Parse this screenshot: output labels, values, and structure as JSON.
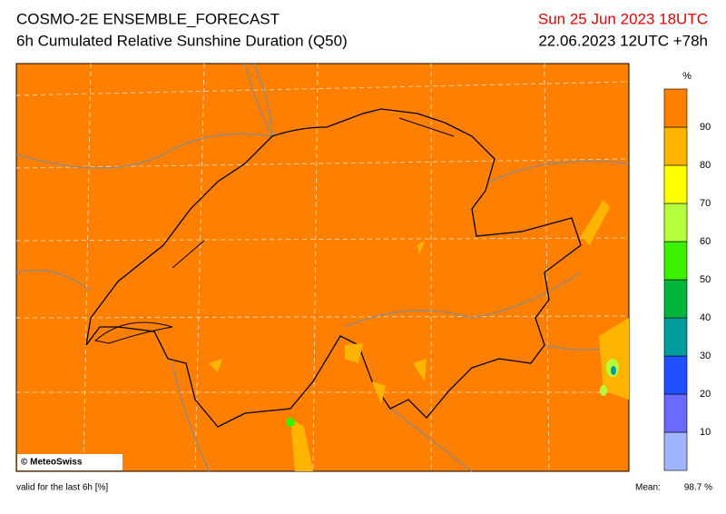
{
  "header": {
    "title": "COSMO-2E ENSEMBLE_FORECAST",
    "subtitle": "6h Cumulated Relative Sunshine Duration (Q50)",
    "valid_time": "Sun 25 Jun 2023 18UTC",
    "run_time": "22.06.2023 12UTC +78h"
  },
  "legend": {
    "unit": "%",
    "labels": [
      10,
      20,
      30,
      40,
      50,
      60,
      70,
      80,
      90
    ],
    "colors": [
      "#a0b4ff",
      "#6a6aff",
      "#1e50ff",
      "#009b9b",
      "#00b43c",
      "#3cf000",
      "#b4ff3c",
      "#ffff00",
      "#ffb400",
      "#ff8000"
    ]
  },
  "credit": "© MeteoSwiss",
  "footer": {
    "note": "valid for the last 6h [%]",
    "mean_label": "Mean:",
    "mean_value": "98.7 %"
  }
}
